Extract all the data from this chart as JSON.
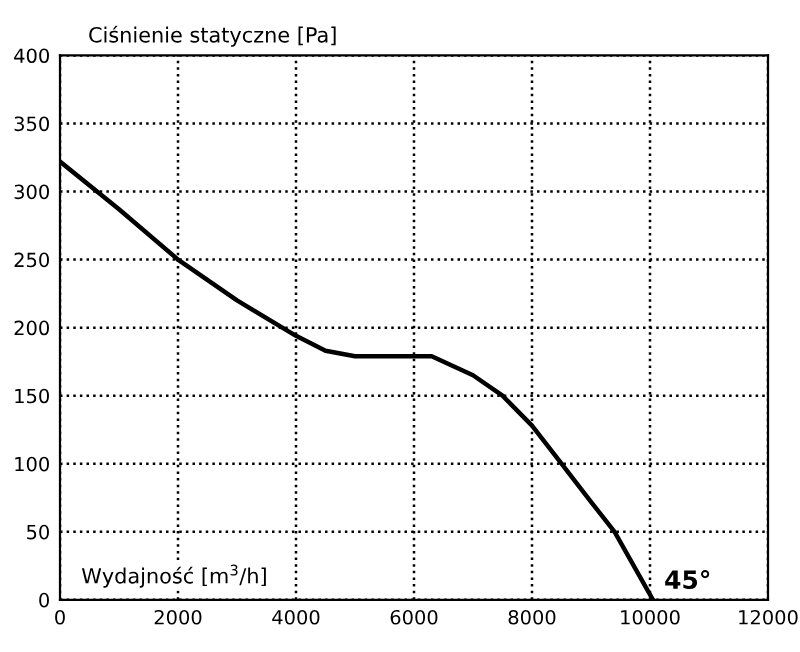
{
  "chart_data": {
    "type": "line",
    "xlabel": "Wydajność [m$^{3}$/h]",
    "ylabel": "Ciśnienie statyczne [Pa]",
    "x": [
      0,
      1000,
      2000,
      3000,
      4000,
      4500,
      5000,
      6300,
      7000,
      7500,
      8000,
      8500,
      9000,
      9400,
      10050
    ],
    "series": [
      {
        "color": "#000000",
        "values": [
          322,
          287,
          250,
          220,
          194,
          183,
          179,
          179,
          165,
          150,
          128,
          100,
          72,
          50,
          0
        ]
      }
    ],
    "annotations": [
      {
        "text": "45°",
        "x": 10050,
        "y": 0
      }
    ],
    "xlim": [
      0,
      12000
    ],
    "ylim": [
      0,
      400
    ],
    "xticks": [
      0,
      2000,
      4000,
      6000,
      8000,
      10000,
      12000
    ],
    "yticks": [
      0,
      50,
      100,
      150,
      200,
      250,
      300,
      350,
      400
    ],
    "grid": true
  }
}
